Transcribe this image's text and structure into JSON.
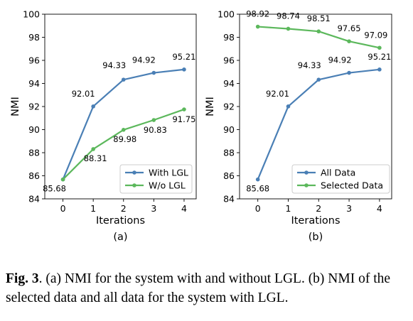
{
  "chart_data": [
    {
      "type": "line",
      "panel_label": "(a)",
      "xlabel": "Iterations",
      "ylabel": "NMI",
      "x": [
        0,
        1,
        2,
        3,
        4
      ],
      "xticks": [
        "0",
        "1",
        "2",
        "3",
        "4"
      ],
      "ylim": [
        84,
        100
      ],
      "yticks": [
        "84",
        "86",
        "88",
        "90",
        "92",
        "94",
        "96",
        "98",
        "100"
      ],
      "grid": false,
      "legend_position": "bottom-right",
      "series": [
        {
          "name": "With LGL",
          "color": "#4a7fb5",
          "values": [
            85.68,
            92.01,
            94.33,
            94.92,
            95.21
          ],
          "labels": [
            "85.68",
            "92.01",
            "94.33",
            "94.92",
            "95.21"
          ]
        },
        {
          "name": "W/o LGL",
          "color": "#5cb85c",
          "values": [
            85.68,
            88.31,
            89.98,
            90.83,
            91.75
          ],
          "labels": [
            "",
            "88.31",
            "89.98",
            "90.83",
            "91.75"
          ]
        }
      ]
    },
    {
      "type": "line",
      "panel_label": "(b)",
      "xlabel": "Iterations",
      "ylabel": "NMI",
      "x": [
        0,
        1,
        2,
        3,
        4
      ],
      "xticks": [
        "0",
        "1",
        "2",
        "3",
        "4"
      ],
      "ylim": [
        84,
        100
      ],
      "yticks": [
        "84",
        "86",
        "88",
        "90",
        "92",
        "94",
        "96",
        "98",
        "100"
      ],
      "grid": false,
      "legend_position": "bottom-right",
      "series": [
        {
          "name": "All Data",
          "color": "#4a7fb5",
          "values": [
            85.68,
            92.01,
            94.33,
            94.92,
            95.21
          ],
          "labels": [
            "85.68",
            "92.01",
            "94.33",
            "94.92",
            "95.21"
          ]
        },
        {
          "name": "Selected Data",
          "color": "#5cb85c",
          "values": [
            98.92,
            98.74,
            98.51,
            97.65,
            97.09
          ],
          "labels": [
            "98.92",
            "98.74",
            "98.51",
            "97.65",
            "97.09"
          ]
        }
      ]
    }
  ],
  "caption": {
    "figure_label": "Fig. 3",
    "text": ". (a) NMI for the system with and without LGL. (b) NMI of the selected data and all data for the system with LGL."
  }
}
